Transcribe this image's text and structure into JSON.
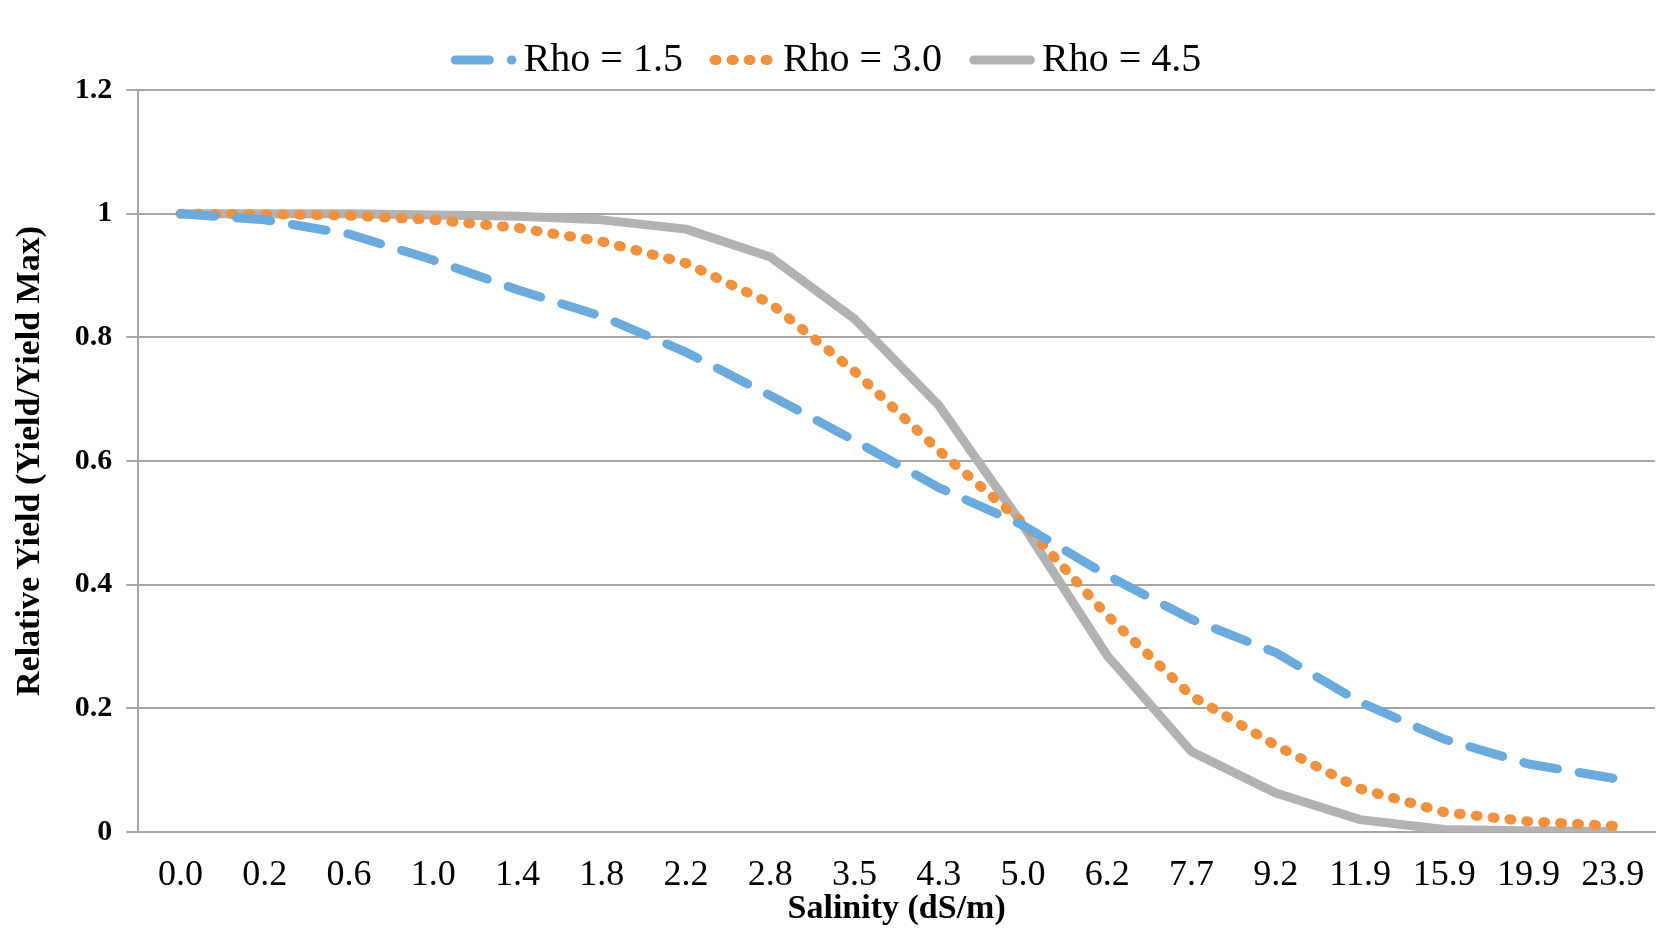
{
  "chart_data": {
    "type": "line",
    "xlabel": "Salinity (dS/m)",
    "ylabel": "Relative Yield (Yield/Yield Max)",
    "categories": [
      "0.0",
      "0.2",
      "0.6",
      "1.0",
      "1.4",
      "1.8",
      "2.2",
      "2.8",
      "3.5",
      "4.3",
      "5.0",
      "6.2",
      "7.7",
      "9.2",
      "11.9",
      "15.9",
      "19.9",
      "23.9"
    ],
    "series": [
      {
        "name": "Rho = 1.5",
        "color": "#6aaadc",
        "line_style": "dashed",
        "values": [
          1.0,
          0.99,
          0.967,
          0.925,
          0.877,
          0.834,
          0.776,
          0.706,
          0.633,
          0.557,
          0.496,
          0.415,
          0.344,
          0.29,
          0.21,
          0.15,
          0.11,
          0.087
        ]
      },
      {
        "name": "Rho = 3.0",
        "color": "#f0913f",
        "line_style": "dotted",
        "values": [
          1.0,
          0.999,
          0.997,
          0.99,
          0.977,
          0.955,
          0.92,
          0.855,
          0.745,
          0.617,
          0.5,
          0.35,
          0.22,
          0.14,
          0.07,
          0.032,
          0.017,
          0.01
        ]
      },
      {
        "name": "Rho = 4.5",
        "color": "#b2b2b2",
        "line_style": "solid",
        "values": [
          1.0,
          1.0,
          1.0,
          0.998,
          0.996,
          0.99,
          0.975,
          0.93,
          0.83,
          0.69,
          0.496,
          0.285,
          0.13,
          0.063,
          0.02,
          0.004,
          0.002,
          0.001
        ]
      }
    ],
    "ylim": [
      0,
      1.2
    ],
    "yticks": [
      0,
      0.2,
      0.4,
      0.6,
      0.8,
      1,
      1.2
    ],
    "grid": "y",
    "legend": "top",
    "marker": "none"
  }
}
